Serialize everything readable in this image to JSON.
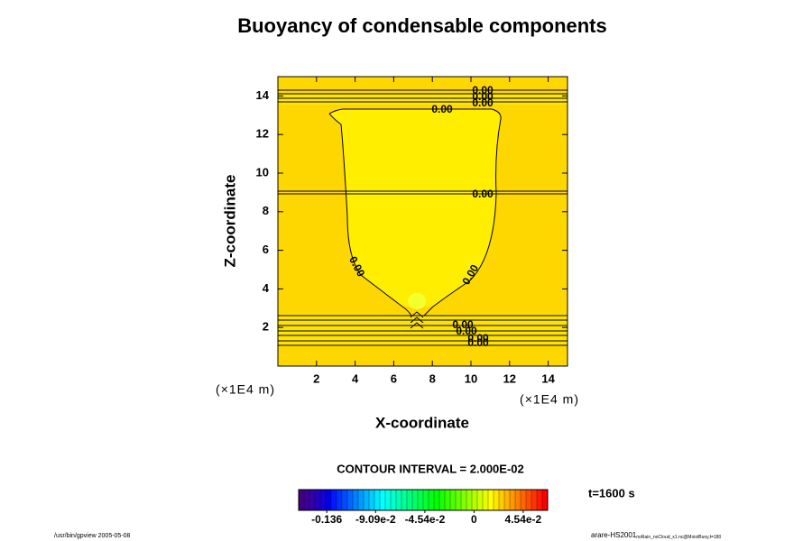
{
  "chart_data": {
    "type": "contour",
    "title": "Buoyancy of condensable components",
    "x_label": "X-coordinate",
    "y_label": "Z-coordinate",
    "x_unit": "(×1E4 m)",
    "y_unit": "(×1E4 m)",
    "xlim": [
      0,
      15
    ],
    "ylim": [
      0,
      15
    ],
    "xticks": [
      2,
      4,
      6,
      8,
      10,
      12,
      14
    ],
    "yticks": [
      2,
      4,
      6,
      8,
      10,
      12,
      14
    ],
    "contour_labels": [
      "0.00",
      "0.00",
      "0.00",
      "0.00",
      "0.00",
      "0.00",
      "0.00",
      "0.00",
      "0.00",
      "0.00",
      "0.00"
    ],
    "contour_interval_text": "CONTOUR INTERVAL = 2.000E-02",
    "time_text": "t=1600 s",
    "colormap": "rainbow",
    "clim": [
      -0.162,
      0.068
    ],
    "cticks": [
      {
        "value": -0.136,
        "label": "-0.136"
      },
      {
        "value": -0.0909,
        "label": "-9.09e-2"
      },
      {
        "value": -0.0454,
        "label": "-4.54e-2"
      },
      0,
      {
        "value": 0.0454,
        "label": "4.54e-2"
      }
    ],
    "footer_left": "/usr/bin/gpview 2005-05-08",
    "footer_right": "arare-HS2001",
    "footer_right_sub": "noRain_noCloud_x1.nc@MoistBuoy,t=180"
  }
}
